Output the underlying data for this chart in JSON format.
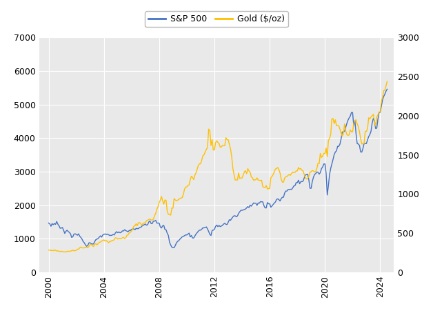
{
  "legend_labels": [
    "S&P 500",
    "Gold ($/oz)"
  ],
  "sp500_color": "#4472C4",
  "gold_color": "#FFC000",
  "figure_bg_color": "#FFFFFF",
  "plot_bg_color": "#E9E9E9",
  "grid_color": "#FFFFFF",
  "left_ylim": [
    0,
    7000
  ],
  "right_ylim": [
    0,
    3000
  ],
  "left_yticks": [
    0,
    1000,
    2000,
    3000,
    4000,
    5000,
    6000,
    7000
  ],
  "right_yticks": [
    0,
    500,
    1000,
    1500,
    2000,
    2500,
    3000
  ],
  "xticks": [
    2000,
    2004,
    2008,
    2012,
    2016,
    2020,
    2024
  ],
  "xlim": [
    1999.3,
    2025.0
  ],
  "figsize": [
    6.28,
    4.54
  ],
  "dpi": 100,
  "line_width": 1.0,
  "sp500_data": {
    "years": [
      2000.0,
      2000.083,
      2000.167,
      2000.25,
      2000.333,
      2000.417,
      2000.5,
      2000.583,
      2000.667,
      2000.75,
      2000.833,
      2000.917,
      2001.0,
      2001.083,
      2001.167,
      2001.25,
      2001.333,
      2001.417,
      2001.5,
      2001.583,
      2001.667,
      2001.75,
      2001.833,
      2001.917,
      2002.0,
      2002.083,
      2002.167,
      2002.25,
      2002.333,
      2002.417,
      2002.5,
      2002.583,
      2002.667,
      2002.75,
      2002.833,
      2002.917,
      2003.0,
      2003.083,
      2003.167,
      2003.25,
      2003.333,
      2003.417,
      2003.5,
      2003.583,
      2003.667,
      2003.75,
      2003.833,
      2003.917,
      2004.0,
      2004.083,
      2004.167,
      2004.25,
      2004.333,
      2004.417,
      2004.5,
      2004.583,
      2004.667,
      2004.75,
      2004.833,
      2004.917,
      2005.0,
      2005.083,
      2005.167,
      2005.25,
      2005.333,
      2005.417,
      2005.5,
      2005.583,
      2005.667,
      2005.75,
      2005.833,
      2005.917,
      2006.0,
      2006.083,
      2006.167,
      2006.25,
      2006.333,
      2006.417,
      2006.5,
      2006.583,
      2006.667,
      2006.75,
      2006.833,
      2006.917,
      2007.0,
      2007.083,
      2007.167,
      2007.25,
      2007.333,
      2007.417,
      2007.5,
      2007.583,
      2007.667,
      2007.75,
      2007.833,
      2007.917,
      2008.0,
      2008.083,
      2008.167,
      2008.25,
      2008.333,
      2008.417,
      2008.5,
      2008.583,
      2008.667,
      2008.75,
      2008.833,
      2008.917,
      2009.0,
      2009.083,
      2009.167,
      2009.25,
      2009.333,
      2009.417,
      2009.5,
      2009.583,
      2009.667,
      2009.75,
      2009.833,
      2009.917,
      2010.0,
      2010.083,
      2010.167,
      2010.25,
      2010.333,
      2010.417,
      2010.5,
      2010.583,
      2010.667,
      2010.75,
      2010.833,
      2010.917,
      2011.0,
      2011.083,
      2011.167,
      2011.25,
      2011.333,
      2011.417,
      2011.5,
      2011.583,
      2011.667,
      2011.75,
      2011.833,
      2011.917,
      2012.0,
      2012.083,
      2012.167,
      2012.25,
      2012.333,
      2012.417,
      2012.5,
      2012.583,
      2012.667,
      2012.75,
      2012.833,
      2012.917,
      2013.0,
      2013.083,
      2013.167,
      2013.25,
      2013.333,
      2013.417,
      2013.5,
      2013.583,
      2013.667,
      2013.75,
      2013.833,
      2013.917,
      2014.0,
      2014.083,
      2014.167,
      2014.25,
      2014.333,
      2014.417,
      2014.5,
      2014.583,
      2014.667,
      2014.75,
      2014.833,
      2014.917,
      2015.0,
      2015.083,
      2015.167,
      2015.25,
      2015.333,
      2015.417,
      2015.5,
      2015.583,
      2015.667,
      2015.75,
      2015.833,
      2015.917,
      2016.0,
      2016.083,
      2016.167,
      2016.25,
      2016.333,
      2016.417,
      2016.5,
      2016.583,
      2016.667,
      2016.75,
      2016.833,
      2016.917,
      2017.0,
      2017.083,
      2017.167,
      2017.25,
      2017.333,
      2017.417,
      2017.5,
      2017.583,
      2017.667,
      2017.75,
      2017.833,
      2017.917,
      2018.0,
      2018.083,
      2018.167,
      2018.25,
      2018.333,
      2018.417,
      2018.5,
      2018.583,
      2018.667,
      2018.75,
      2018.833,
      2018.917,
      2019.0,
      2019.083,
      2019.167,
      2019.25,
      2019.333,
      2019.417,
      2019.5,
      2019.583,
      2019.667,
      2019.75,
      2019.833,
      2019.917,
      2020.0,
      2020.083,
      2020.167,
      2020.25,
      2020.333,
      2020.417,
      2020.5,
      2020.583,
      2020.667,
      2020.75,
      2020.833,
      2020.917,
      2021.0,
      2021.083,
      2021.167,
      2021.25,
      2021.333,
      2021.417,
      2021.5,
      2021.583,
      2021.667,
      2021.75,
      2021.833,
      2021.917,
      2022.0,
      2022.083,
      2022.167,
      2022.25,
      2022.333,
      2022.417,
      2022.5,
      2022.583,
      2022.667,
      2022.75,
      2022.833,
      2022.917,
      2023.0,
      2023.083,
      2023.167,
      2023.25,
      2023.333,
      2023.417,
      2023.5,
      2023.583,
      2023.667,
      2023.75,
      2023.833,
      2023.917,
      2024.0,
      2024.083,
      2024.167,
      2024.25,
      2024.333,
      2024.417,
      2024.5
    ],
    "values": [
      1469,
      1442,
      1373,
      1452,
      1420,
      1455,
      1430,
      1517,
      1436,
      1387,
      1315,
      1320,
      1335,
      1253,
      1160,
      1224,
      1255,
      1215,
      1190,
      1148,
      1040,
      1060,
      1139,
      1148,
      1130,
      1107,
      1147,
      1076,
      1040,
      989,
      916,
      879,
      815,
      777,
      800,
      879,
      879,
      855,
      841,
      848,
      916,
      974,
      990,
      1008,
      1050,
      1087,
      1050,
      1112,
      1132,
      1145,
      1126,
      1140,
      1120,
      1101,
      1101,
      1104,
      1130,
      1114,
      1174,
      1212,
      1181,
      1203,
      1180,
      1191,
      1234,
      1235,
      1270,
      1243,
      1228,
      1207,
      1249,
      1248,
      1280,
      1294,
      1295,
      1270,
      1310,
      1303,
      1303,
      1336,
      1340,
      1377,
      1400,
      1418,
      1438,
      1406,
      1420,
      1503,
      1530,
      1455,
      1455,
      1526,
      1526,
      1549,
      1468,
      1468,
      1468,
      1352,
      1322,
      1385,
      1400,
      1280,
      1267,
      1166,
      1099,
      899,
      816,
      752,
      735,
      735,
      797,
      879,
      920,
      946,
      987,
      1020,
      1057,
      1071,
      1094,
      1115,
      1115,
      1140,
      1169,
      1057,
      1099,
      1022,
      1022,
      1083,
      1141,
      1183,
      1225,
      1258,
      1258,
      1286,
      1327,
      1325,
      1340,
      1353,
      1292,
      1218,
      1131,
      1099,
      1247,
      1258,
      1278,
      1369,
      1408,
      1363,
      1397,
      1363,
      1379,
      1404,
      1440,
      1461,
      1430,
      1426,
      1498,
      1569,
      1551,
      1606,
      1651,
      1685,
      1685,
      1655,
      1682,
      1757,
      1806,
      1848,
      1848,
      1859,
      1872,
      1887,
      1924,
      1960,
      1930,
      2003,
      1972,
      2018,
      2068,
      2059,
      2059,
      1995,
      2068,
      2063,
      2107,
      2103,
      2099,
      1988,
      1921,
      1920,
      2080,
      2044,
      2044,
      1940,
      1978,
      2021,
      2065,
      2099,
      2174,
      2190,
      2168,
      2126,
      2198,
      2239,
      2239,
      2365,
      2423,
      2423,
      2470,
      2470,
      2477,
      2472,
      2519,
      2575,
      2584,
      2674,
      2674,
      2747,
      2641,
      2702,
      2706,
      2718,
      2816,
      2901,
      2914,
      2924,
      2760,
      2506,
      2506,
      2707,
      2834,
      2918,
      2945,
      2990,
      2980,
      2927,
      2976,
      3093,
      3141,
      3231,
      3231,
      2954,
      2305,
      2584,
      2912,
      3100,
      3232,
      3363,
      3508,
      3585,
      3621,
      3756,
      3756,
      3821,
      3973,
      4181,
      4193,
      4204,
      4319,
      4437,
      4536,
      4605,
      4657,
      4766,
      4766,
      4374,
      4530,
      4132,
      3839,
      3825,
      3785,
      3588,
      3585,
      3694,
      3839,
      3840,
      3840,
      3951,
      4050,
      4109,
      4205,
      4450,
      4588,
      4516,
      4289,
      4299,
      4567,
      4770,
      4770,
      4958,
      5137,
      5243,
      5308,
      5400,
      5460
    ]
  },
  "gold_data": {
    "years": [
      2000.0,
      2000.083,
      2000.167,
      2000.25,
      2000.333,
      2000.417,
      2000.5,
      2000.583,
      2000.667,
      2000.75,
      2000.833,
      2000.917,
      2001.0,
      2001.083,
      2001.167,
      2001.25,
      2001.333,
      2001.417,
      2001.5,
      2001.583,
      2001.667,
      2001.75,
      2001.833,
      2001.917,
      2002.0,
      2002.083,
      2002.167,
      2002.25,
      2002.333,
      2002.417,
      2002.5,
      2002.583,
      2002.667,
      2002.75,
      2002.833,
      2002.917,
      2003.0,
      2003.083,
      2003.167,
      2003.25,
      2003.333,
      2003.417,
      2003.5,
      2003.583,
      2003.667,
      2003.75,
      2003.833,
      2003.917,
      2004.0,
      2004.083,
      2004.167,
      2004.25,
      2004.333,
      2004.417,
      2004.5,
      2004.583,
      2004.667,
      2004.75,
      2004.833,
      2004.917,
      2005.0,
      2005.083,
      2005.167,
      2005.25,
      2005.333,
      2005.417,
      2005.5,
      2005.583,
      2005.667,
      2005.75,
      2005.833,
      2005.917,
      2006.0,
      2006.083,
      2006.167,
      2006.25,
      2006.333,
      2006.417,
      2006.5,
      2006.583,
      2006.667,
      2006.75,
      2006.833,
      2006.917,
      2007.0,
      2007.083,
      2007.167,
      2007.25,
      2007.333,
      2007.417,
      2007.5,
      2007.583,
      2007.667,
      2007.75,
      2007.833,
      2007.917,
      2008.0,
      2008.083,
      2008.167,
      2008.25,
      2008.333,
      2008.417,
      2008.5,
      2008.583,
      2008.667,
      2008.75,
      2008.833,
      2008.917,
      2009.0,
      2009.083,
      2009.167,
      2009.25,
      2009.333,
      2009.417,
      2009.5,
      2009.583,
      2009.667,
      2009.75,
      2009.833,
      2009.917,
      2010.0,
      2010.083,
      2010.167,
      2010.25,
      2010.333,
      2010.417,
      2010.5,
      2010.583,
      2010.667,
      2010.75,
      2010.833,
      2010.917,
      2011.0,
      2011.083,
      2011.167,
      2011.25,
      2011.333,
      2011.417,
      2011.5,
      2011.583,
      2011.667,
      2011.75,
      2011.833,
      2011.917,
      2012.0,
      2012.083,
      2012.167,
      2012.25,
      2012.333,
      2012.417,
      2012.5,
      2012.583,
      2012.667,
      2012.75,
      2012.833,
      2012.917,
      2013.0,
      2013.083,
      2013.167,
      2013.25,
      2013.333,
      2013.417,
      2013.5,
      2013.583,
      2013.667,
      2013.75,
      2013.833,
      2013.917,
      2014.0,
      2014.083,
      2014.167,
      2014.25,
      2014.333,
      2014.417,
      2014.5,
      2014.583,
      2014.667,
      2014.75,
      2014.833,
      2014.917,
      2015.0,
      2015.083,
      2015.167,
      2015.25,
      2015.333,
      2015.417,
      2015.5,
      2015.583,
      2015.667,
      2015.75,
      2015.833,
      2015.917,
      2016.0,
      2016.083,
      2016.167,
      2016.25,
      2016.333,
      2016.417,
      2016.5,
      2016.583,
      2016.667,
      2016.75,
      2016.833,
      2016.917,
      2017.0,
      2017.083,
      2017.167,
      2017.25,
      2017.333,
      2017.417,
      2017.5,
      2017.583,
      2017.667,
      2017.75,
      2017.833,
      2017.917,
      2018.0,
      2018.083,
      2018.167,
      2018.25,
      2018.333,
      2018.417,
      2018.5,
      2018.583,
      2018.667,
      2018.75,
      2018.833,
      2018.917,
      2019.0,
      2019.083,
      2019.167,
      2019.25,
      2019.333,
      2019.417,
      2019.5,
      2019.583,
      2019.667,
      2019.75,
      2019.833,
      2019.917,
      2020.0,
      2020.083,
      2020.167,
      2020.25,
      2020.333,
      2020.417,
      2020.5,
      2020.583,
      2020.667,
      2020.75,
      2020.833,
      2020.917,
      2021.0,
      2021.083,
      2021.167,
      2021.25,
      2021.333,
      2021.417,
      2021.5,
      2021.583,
      2021.667,
      2021.75,
      2021.833,
      2021.917,
      2022.0,
      2022.083,
      2022.167,
      2022.25,
      2022.333,
      2022.417,
      2022.5,
      2022.583,
      2022.667,
      2022.75,
      2022.833,
      2022.917,
      2023.0,
      2023.083,
      2023.167,
      2023.25,
      2023.333,
      2023.417,
      2023.5,
      2023.583,
      2023.667,
      2023.75,
      2023.833,
      2023.917,
      2024.0,
      2024.083,
      2024.167,
      2024.25,
      2024.333,
      2024.417,
      2024.5
    ],
    "values": [
      284,
      284,
      279,
      280,
      276,
      287,
      279,
      274,
      273,
      270,
      265,
      270,
      265,
      263,
      261,
      260,
      268,
      270,
      267,
      272,
      275,
      283,
      275,
      277,
      282,
      295,
      297,
      313,
      323,
      315,
      310,
      314,
      320,
      320,
      314,
      332,
      355,
      357,
      340,
      330,
      355,
      366,
      350,
      368,
      382,
      388,
      399,
      407,
      415,
      400,
      406,
      394,
      379,
      391,
      397,
      405,
      407,
      420,
      441,
      438,
      425,
      435,
      429,
      430,
      440,
      446,
      431,
      442,
      472,
      479,
      501,
      513,
      525,
      555,
      590,
      595,
      620,
      596,
      632,
      636,
      623,
      600,
      625,
      632,
      632,
      660,
      665,
      675,
      680,
      670,
      666,
      680,
      721,
      754,
      806,
      840,
      890,
      922,
      970,
      916,
      870,
      924,
      920,
      780,
      740,
      740,
      730,
      820,
      820,
      943,
      924,
      915,
      920,
      934,
      940,
      950,
      955,
      996,
      1060,
      1090,
      1090,
      1112,
      1116,
      1184,
      1228,
      1213,
      1185,
      1240,
      1272,
      1317,
      1366,
      1387,
      1387,
      1435,
      1490,
      1502,
      1540,
      1570,
      1597,
      1830,
      1812,
      1620,
      1698,
      1563,
      1563,
      1657,
      1680,
      1660,
      1645,
      1600,
      1602,
      1622,
      1617,
      1620,
      1720,
      1694,
      1694,
      1635,
      1574,
      1480,
      1330,
      1250,
      1180,
      1180,
      1180,
      1270,
      1200,
      1205,
      1205,
      1245,
      1284,
      1297,
      1260,
      1325,
      1295,
      1280,
      1220,
      1208,
      1177,
      1182,
      1182,
      1207,
      1180,
      1175,
      1175,
      1175,
      1095,
      1085,
      1085,
      1108,
      1065,
      1070,
      1070,
      1210,
      1225,
      1250,
      1285,
      1320,
      1327,
      1340,
      1310,
      1270,
      1190,
      1152,
      1152,
      1205,
      1220,
      1225,
      1240,
      1250,
      1240,
      1265,
      1280,
      1275,
      1278,
      1295,
      1295,
      1340,
      1320,
      1325,
      1305,
      1295,
      1250,
      1207,
      1193,
      1200,
      1225,
      1283,
      1283,
      1300,
      1295,
      1280,
      1290,
      1330,
      1393,
      1390,
      1520,
      1467,
      1485,
      1520,
      1520,
      1590,
      1478,
      1683,
      1711,
      1763,
      1960,
      1965,
      1900,
      1950,
      1875,
      1873,
      1873,
      1830,
      1780,
      1740,
      1770,
      1895,
      1810,
      1760,
      1750,
      1756,
      1820,
      1795,
      1795,
      1900,
      1940,
      1950,
      1896,
      1860,
      1794,
      1710,
      1640,
      1644,
      1646,
      1800,
      1800,
      1840,
      1975,
      1960,
      1985,
      2000,
      2020,
      1931,
      1870,
      1985,
      2010,
      2050,
      2050,
      2190,
      2233,
      2320,
      2330,
      2380,
      2440
    ]
  }
}
